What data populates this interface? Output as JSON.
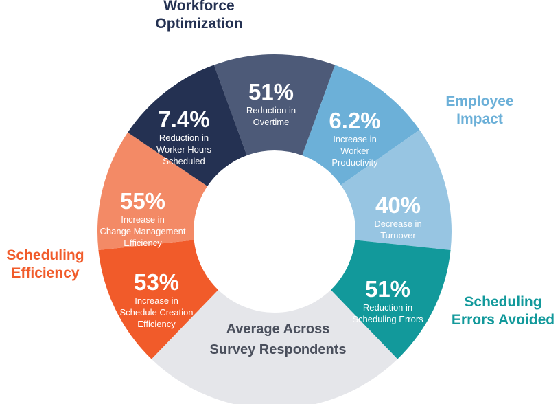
{
  "colors": {
    "workforce": "#243152",
    "workforce_light": "#4d5a78",
    "employee": "#6cb0d8",
    "employee_light": "#97c5e2",
    "errors": "#12999b",
    "center_segment": "#e5e6ea",
    "sched_dark": "#f15b2a",
    "sched_light": "#f38a66",
    "center_text": "#4a4f5c"
  },
  "categories": {
    "workforce": {
      "line1": "Workforce",
      "line2": "Optimization"
    },
    "employee": {
      "line1": "Employee",
      "line2": "Impact"
    },
    "errors": {
      "line1": "Scheduling",
      "line2": "Errors Avoided"
    },
    "scheduling": {
      "line1": "Scheduling",
      "line2": "Efficiency"
    }
  },
  "segments": [
    {
      "id": "reduction-overtime",
      "value": "51%",
      "desc": [
        "Reduction in",
        "Overtime"
      ]
    },
    {
      "id": "increase-productivity",
      "value": "6.2%",
      "desc": [
        "Increase in",
        "Worker",
        "Productivity"
      ]
    },
    {
      "id": "decrease-turnover",
      "value": "40%",
      "desc": [
        "Decrease in",
        "Turnover"
      ]
    },
    {
      "id": "reduction-scheduling-errors",
      "value": "51%",
      "desc": [
        "Reduction in",
        "Scheduling Errors"
      ]
    },
    {
      "id": "average-respondents",
      "value": "",
      "desc": [
        "Average Across",
        "Survey Respondents"
      ]
    },
    {
      "id": "increase-schedule-creation",
      "value": "53%",
      "desc": [
        "Increase in",
        "Schedule Creation",
        "Efficiency"
      ]
    },
    {
      "id": "increase-change-management",
      "value": "55%",
      "desc": [
        "Increase in",
        "Change Management",
        "Efficiency"
      ]
    },
    {
      "id": "reduction-worker-hours",
      "value": "7.4%",
      "desc": [
        "Reduction in",
        "Worker Hours",
        "Scheduled"
      ]
    }
  ]
}
